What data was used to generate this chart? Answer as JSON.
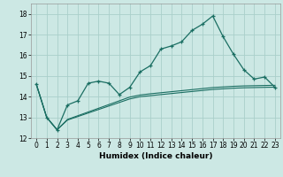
{
  "xlabel": "Humidex (Indice chaleur)",
  "background_color": "#cce8e4",
  "grid_color": "#aacfca",
  "line_color": "#1a6e62",
  "xlim": [
    -0.5,
    23.5
  ],
  "ylim": [
    12.0,
    18.5
  ],
  "yticks": [
    12,
    13,
    14,
    15,
    16,
    17,
    18
  ],
  "xticks": [
    0,
    1,
    2,
    3,
    4,
    5,
    6,
    7,
    8,
    9,
    10,
    11,
    12,
    13,
    14,
    15,
    16,
    17,
    18,
    19,
    20,
    21,
    22,
    23
  ],
  "series1_x": [
    0,
    1,
    2,
    3,
    4,
    5,
    6,
    7,
    8,
    9,
    10,
    11,
    12,
    13,
    14,
    15,
    16,
    17,
    18,
    19,
    20,
    21,
    22,
    23
  ],
  "series1_y": [
    14.6,
    13.0,
    12.4,
    13.6,
    13.8,
    14.65,
    14.75,
    14.65,
    14.1,
    14.45,
    15.2,
    15.5,
    16.3,
    16.45,
    16.65,
    17.2,
    17.5,
    17.9,
    16.9,
    16.05,
    15.3,
    14.85,
    14.95,
    14.45
  ],
  "series2_x": [
    0,
    1,
    2,
    3,
    4,
    5,
    6,
    7,
    8,
    9,
    10,
    11,
    12,
    13,
    14,
    15,
    16,
    17,
    18,
    19,
    20,
    21,
    22,
    23
  ],
  "series2_y": [
    14.6,
    13.0,
    12.4,
    12.87,
    13.04,
    13.21,
    13.38,
    13.55,
    13.72,
    13.89,
    14.0,
    14.05,
    14.1,
    14.15,
    14.2,
    14.25,
    14.3,
    14.35,
    14.38,
    14.41,
    14.43,
    14.44,
    14.45,
    14.46
  ],
  "series3_x": [
    0,
    1,
    2,
    3,
    4,
    5,
    6,
    7,
    8,
    9,
    10,
    11,
    12,
    13,
    14,
    15,
    16,
    17,
    18,
    19,
    20,
    21,
    22,
    23
  ],
  "series3_y": [
    14.6,
    13.0,
    12.4,
    12.9,
    13.08,
    13.26,
    13.44,
    13.62,
    13.8,
    13.98,
    14.08,
    14.14,
    14.19,
    14.24,
    14.29,
    14.34,
    14.39,
    14.44,
    14.47,
    14.5,
    14.52,
    14.53,
    14.54,
    14.55
  ]
}
